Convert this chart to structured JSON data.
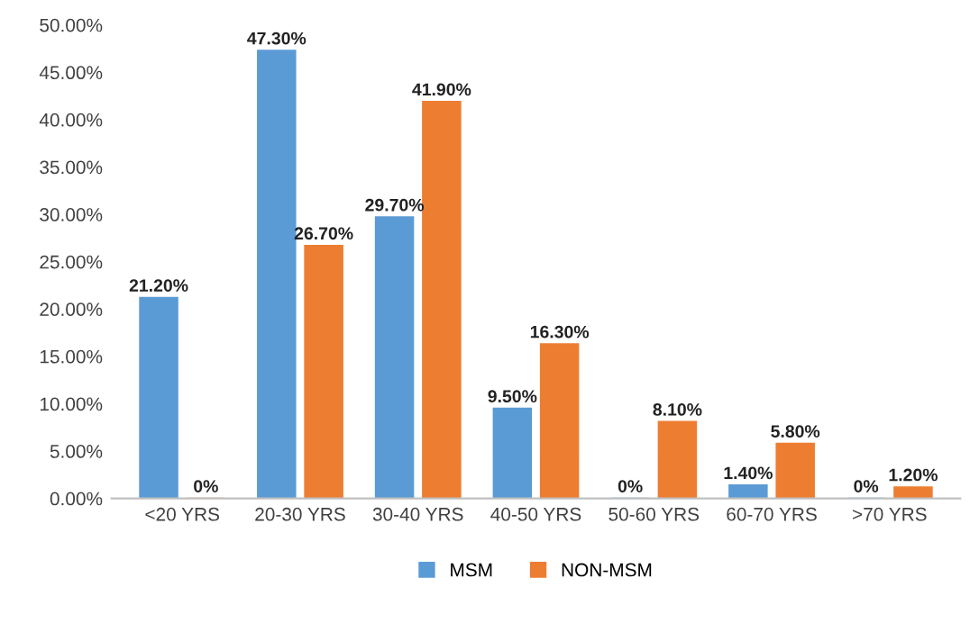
{
  "chart_data": {
    "type": "bar",
    "categories": [
      "<20 YRS",
      "20-30 YRS",
      "30-40 YRS",
      "40-50 YRS",
      "50-60 YRS",
      "60-70 YRS",
      ">70 YRS"
    ],
    "series": [
      {
        "name": "MSM",
        "color": "#5b9bd5",
        "values": [
          21.2,
          47.3,
          29.7,
          9.5,
          0,
          1.4,
          0
        ],
        "value_labels": [
          "21.20%",
          "47.30%",
          "29.70%",
          "9.50%",
          "0%",
          "1.40%",
          "0%"
        ]
      },
      {
        "name": "NON-MSM",
        "color": "#ed7d31",
        "values": [
          0,
          26.7,
          41.9,
          16.3,
          8.1,
          5.8,
          1.2
        ],
        "value_labels": [
          "0%",
          "26.70%",
          "41.90%",
          "16.30%",
          "8.10%",
          "5.80%",
          "1.20%"
        ]
      }
    ],
    "ylim": [
      0,
      50
    ],
    "yticks": [
      {
        "value": 0,
        "label": "0.00%"
      },
      {
        "value": 5,
        "label": "5.00%"
      },
      {
        "value": 10,
        "label": "10.00%"
      },
      {
        "value": 15,
        "label": "15.00%"
      },
      {
        "value": 20,
        "label": "20.00%"
      },
      {
        "value": 25,
        "label": "25.00%"
      },
      {
        "value": 30,
        "label": "30.00%"
      },
      {
        "value": 35,
        "label": "35.00%"
      },
      {
        "value": 40,
        "label": "40.00%"
      },
      {
        "value": 45,
        "label": "45.00%"
      },
      {
        "value": 50,
        "label": "50.00%"
      }
    ],
    "grid": false,
    "legend": "bottom"
  }
}
